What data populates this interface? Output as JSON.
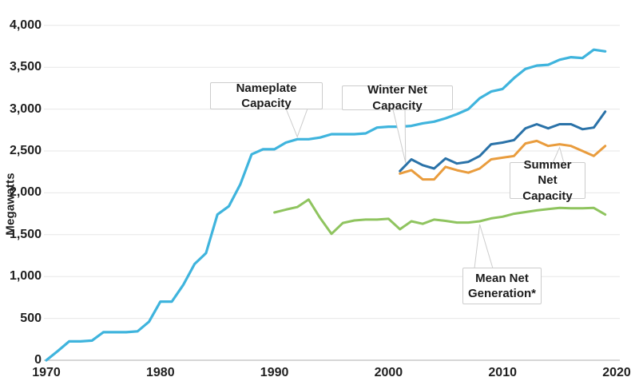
{
  "chart_data": {
    "type": "line",
    "title": "",
    "xlabel": "",
    "ylabel": "Megawatts",
    "xlim": [
      1970,
      2020
    ],
    "ylim": [
      0,
      4000
    ],
    "grid": "horizontal",
    "legend_position": "inline-callouts",
    "x_ticks": [
      {
        "label": "1970",
        "value": 1970
      },
      {
        "label": "1980",
        "value": 1980
      },
      {
        "label": "1990",
        "value": 1990
      },
      {
        "label": "2000",
        "value": 2000
      },
      {
        "label": "2010",
        "value": 2010
      },
      {
        "label": "2020",
        "value": 2020
      }
    ],
    "y_ticks": [
      {
        "label": "0",
        "value": 0
      },
      {
        "label": "500",
        "value": 500
      },
      {
        "label": "1,000",
        "value": 1000
      },
      {
        "label": "1,500",
        "value": 1500
      },
      {
        "label": "2,000",
        "value": 2000
      },
      {
        "label": "2,500",
        "value": 2500
      },
      {
        "label": "3,000",
        "value": 3000
      },
      {
        "label": "3,500",
        "value": 3500
      },
      {
        "label": "4,000",
        "value": 4000
      }
    ],
    "series": [
      {
        "name": "Nameplate Capacity",
        "color": "#3fb4dd",
        "x_start": 1970,
        "values": [
          0,
          110,
          225,
          225,
          235,
          335,
          335,
          335,
          345,
          460,
          700,
          700,
          900,
          1150,
          1280,
          1740,
          1840,
          2100,
          2460,
          2520,
          2520,
          2600,
          2640,
          2640,
          2660,
          2700,
          2700,
          2700,
          2710,
          2780,
          2790,
          2790,
          2800,
          2830,
          2850,
          2890,
          2940,
          3000,
          3130,
          3210,
          3240,
          3370,
          3480,
          3520,
          3530,
          3590,
          3620,
          3610,
          3710,
          3690
        ]
      },
      {
        "name": "Winter Net Capacity",
        "color": "#2a72a8",
        "x_start": 2001,
        "values": [
          2260,
          2400,
          2330,
          2290,
          2410,
          2350,
          2370,
          2440,
          2580,
          2600,
          2630,
          2770,
          2820,
          2770,
          2820,
          2820,
          2760,
          2780,
          2970
        ]
      },
      {
        "name": "Summer Net Capacity",
        "color": "#e99c3d",
        "x_start": 2001,
        "values": [
          2230,
          2270,
          2160,
          2160,
          2310,
          2270,
          2240,
          2290,
          2400,
          2420,
          2440,
          2590,
          2620,
          2560,
          2580,
          2560,
          2500,
          2440,
          2560
        ]
      },
      {
        "name": "Mean Net Generation*",
        "color": "#8fc45f",
        "x_start": 1990,
        "values": [
          1765,
          1800,
          1830,
          1920,
          1700,
          1510,
          1640,
          1670,
          1680,
          1680,
          1690,
          1565,
          1660,
          1630,
          1680,
          1665,
          1645,
          1645,
          1660,
          1695,
          1715,
          1750,
          1770,
          1790,
          1805,
          1820,
          1815,
          1815,
          1820,
          1740
        ]
      }
    ],
    "annotations": [
      {
        "label": "Nameplate Capacity",
        "series": 0,
        "target_year": 1992,
        "pointer": "down"
      },
      {
        "label": "Winter Net Capacity",
        "series": 1,
        "target_year": 2001.5,
        "pointer": "down"
      },
      {
        "label": "Summer Net Capacity",
        "series": 2,
        "target_year": 2015,
        "pointer": "up"
      },
      {
        "label": "Mean Net Generation*",
        "series": 3,
        "target_year": 2008,
        "pointer": "up"
      }
    ]
  }
}
